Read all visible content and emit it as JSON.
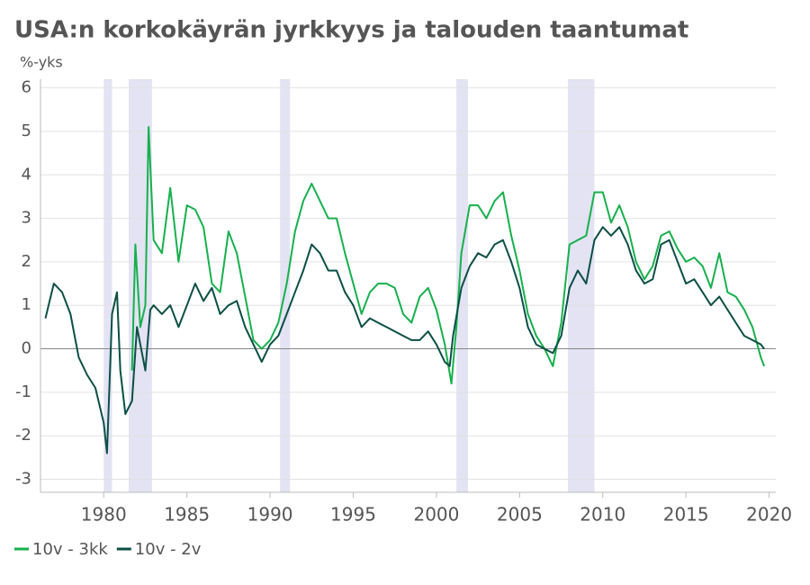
{
  "chart_data": {
    "type": "line",
    "title": "USA:n korkokäyrän jyrkkyys ja talouden taantumat",
    "y_label": "%-yks",
    "xlim": [
      1976.2,
      2020.4
    ],
    "xticks": [
      1980,
      1985,
      1990,
      1995,
      2000,
      2005,
      2010,
      2015,
      2020
    ],
    "ylim": [
      -3.3,
      6.2
    ],
    "yticks": [
      6,
      5,
      4,
      3,
      2,
      1,
      0,
      -1,
      -2,
      -3
    ],
    "grid": true,
    "legend": "bottom-left",
    "recession_color": "#e3e3f3",
    "recessions": [
      [
        1980.0,
        1980.5
      ],
      [
        1981.5,
        1982.9
      ],
      [
        1990.6,
        1991.2
      ],
      [
        2001.2,
        2001.9
      ],
      [
        2007.9,
        2009.5
      ]
    ],
    "series": [
      {
        "name": "10v - 3kk",
        "color": "#17b04d",
        "x": [
          1981.7,
          1981.9,
          1982.2,
          1982.5,
          1982.7,
          1983,
          1983.5,
          1984,
          1984.5,
          1985,
          1985.5,
          1986,
          1986.5,
          1987,
          1987.5,
          1988,
          1988.5,
          1989,
          1989.5,
          1990,
          1990.5,
          1991,
          1991.5,
          1992,
          1992.5,
          1993,
          1993.5,
          1994,
          1994.5,
          1995,
          1995.5,
          1996,
          1996.5,
          1997,
          1997.5,
          1998,
          1998.5,
          1999,
          1999.5,
          2000,
          2000.5,
          2000.9,
          2001.2,
          2001.5,
          2002,
          2002.5,
          2003,
          2003.5,
          2004,
          2004.5,
          2005,
          2005.5,
          2006,
          2006.5,
          2007,
          2007.5,
          2008,
          2008.5,
          2009,
          2009.5,
          2010,
          2010.5,
          2011,
          2011.5,
          2012,
          2012.5,
          2013,
          2013.5,
          2014,
          2014.5,
          2015,
          2015.5,
          2016,
          2016.5,
          2017,
          2017.5,
          2018,
          2018.5,
          2019,
          2019.5,
          2019.7
        ],
        "values": [
          -0.5,
          2.4,
          0.5,
          1.0,
          5.1,
          2.5,
          2.2,
          3.7,
          2.0,
          3.3,
          3.2,
          2.8,
          1.5,
          1.3,
          2.7,
          2.2,
          1.2,
          0.2,
          0.0,
          0.2,
          0.6,
          1.5,
          2.7,
          3.4,
          3.8,
          3.4,
          3.0,
          3.0,
          2.2,
          1.5,
          0.8,
          1.3,
          1.5,
          1.5,
          1.4,
          0.8,
          0.6,
          1.2,
          1.4,
          0.9,
          0.1,
          -0.8,
          0.5,
          2.2,
          3.3,
          3.3,
          3.0,
          3.4,
          3.6,
          2.6,
          1.8,
          0.8,
          0.3,
          0.0,
          -0.4,
          0.6,
          2.4,
          2.5,
          2.6,
          3.6,
          3.6,
          2.9,
          3.3,
          2.8,
          2.0,
          1.6,
          1.9,
          2.6,
          2.7,
          2.3,
          2.0,
          2.1,
          1.9,
          1.4,
          2.2,
          1.3,
          1.2,
          0.9,
          0.5,
          -0.2,
          -0.4
        ]
      },
      {
        "name": "10v - 2v",
        "color": "#0b4f45",
        "x": [
          1976.5,
          1977,
          1977.5,
          1978,
          1978.5,
          1979,
          1979.5,
          1980.0,
          1980.2,
          1980.5,
          1980.8,
          1981.0,
          1981.3,
          1981.7,
          1982.0,
          1982.5,
          1982.8,
          1983,
          1983.5,
          1984,
          1984.5,
          1985,
          1985.5,
          1986,
          1986.5,
          1987,
          1987.5,
          1988,
          1988.5,
          1989,
          1989.5,
          1990,
          1990.5,
          1991,
          1991.5,
          1992,
          1992.5,
          1993,
          1993.5,
          1994,
          1994.5,
          1995,
          1995.5,
          1996,
          1996.5,
          1997,
          1997.5,
          1998,
          1998.5,
          1999,
          1999.5,
          2000,
          2000.5,
          2000.8,
          2001,
          2001.5,
          2002,
          2002.5,
          2003,
          2003.5,
          2004,
          2004.5,
          2005,
          2005.5,
          2006,
          2006.5,
          2007,
          2007.5,
          2008,
          2008.5,
          2009,
          2009.5,
          2010,
          2010.5,
          2011,
          2011.5,
          2012,
          2012.5,
          2013,
          2013.5,
          2014,
          2014.5,
          2015,
          2015.5,
          2016,
          2016.5,
          2017,
          2017.5,
          2018,
          2018.5,
          2019,
          2019.5,
          2019.7
        ],
        "values": [
          0.7,
          1.5,
          1.3,
          0.8,
          -0.2,
          -0.6,
          -0.9,
          -1.7,
          -2.4,
          0.8,
          1.3,
          -0.5,
          -1.5,
          -1.2,
          0.5,
          -0.5,
          0.9,
          1.0,
          0.8,
          1.0,
          0.5,
          1.0,
          1.5,
          1.1,
          1.4,
          0.8,
          1.0,
          1.1,
          0.5,
          0.1,
          -0.3,
          0.1,
          0.3,
          0.8,
          1.3,
          1.8,
          2.4,
          2.2,
          1.8,
          1.8,
          1.3,
          1.0,
          0.5,
          0.7,
          0.6,
          0.5,
          0.4,
          0.3,
          0.2,
          0.2,
          0.4,
          0.1,
          -0.3,
          -0.4,
          0.3,
          1.4,
          1.9,
          2.2,
          2.1,
          2.4,
          2.5,
          2.0,
          1.4,
          0.5,
          0.1,
          0.0,
          -0.1,
          0.3,
          1.4,
          1.8,
          1.5,
          2.5,
          2.8,
          2.6,
          2.8,
          2.4,
          1.8,
          1.5,
          1.6,
          2.4,
          2.5,
          2.0,
          1.5,
          1.6,
          1.3,
          1.0,
          1.2,
          0.9,
          0.6,
          0.3,
          0.2,
          0.1,
          0.0
        ]
      }
    ]
  }
}
